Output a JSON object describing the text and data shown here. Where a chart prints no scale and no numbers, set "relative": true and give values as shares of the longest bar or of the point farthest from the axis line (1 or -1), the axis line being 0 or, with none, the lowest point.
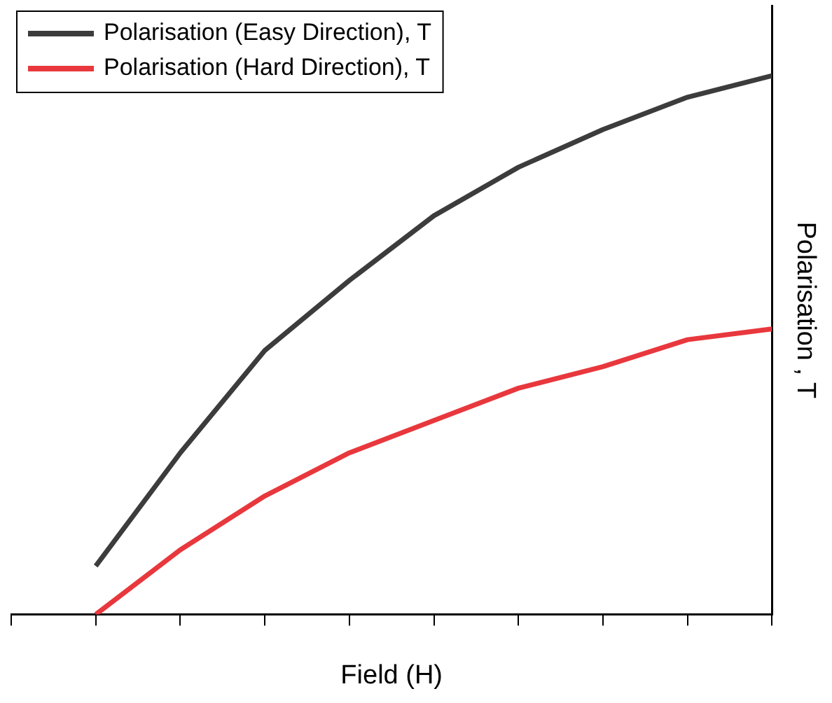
{
  "chart_data": {
    "type": "line",
    "xlabel": "Field (H)",
    "ylabel": "Polarisation , T",
    "relative": true,
    "categories": [
      null,
      null,
      null,
      null,
      null,
      null,
      null,
      null,
      null
    ],
    "series": [
      {
        "name": "Polarisation (Easy Direction), T",
        "color": "#3c3c3c",
        "values": [
          0.09,
          0.3,
          0.49,
          0.62,
          0.74,
          0.83,
          0.9,
          0.96,
          1
        ]
      },
      {
        "name": "Polarisation (Hard Direction), T",
        "color": "#e8383d",
        "values": [
          0,
          0.12,
          0.22,
          0.3,
          0.36,
          0.42,
          0.46,
          0.51,
          0.53
        ]
      }
    ],
    "legend": "top left",
    "grid": false,
    "marker": "none",
    "line_style": "solid"
  }
}
